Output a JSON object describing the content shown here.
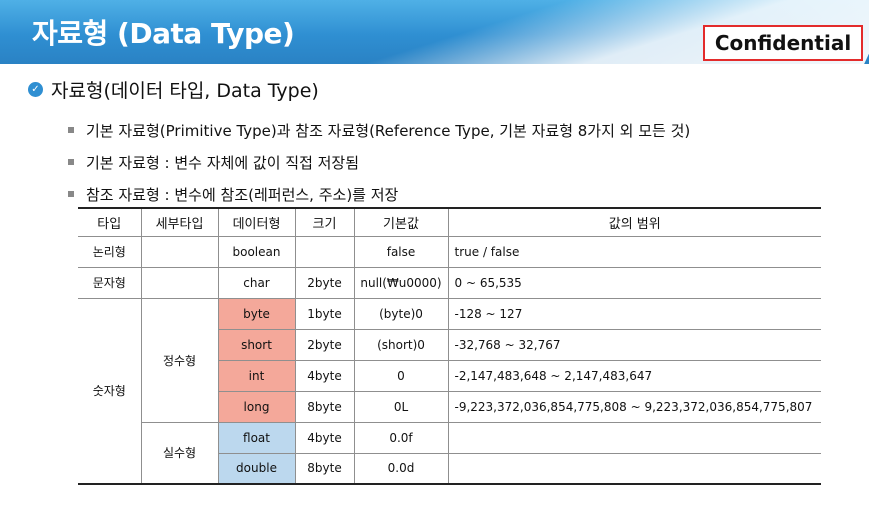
{
  "header": {
    "title": "자료형 (Data Type)",
    "badge": "Confidential"
  },
  "colors": {
    "header_blue": "#2f8fd2",
    "badge_border": "#e32b2b",
    "integer_cell": "#f4a89a",
    "real_cell": "#bcd8ee"
  },
  "section": {
    "icon": "check-circle-icon",
    "heading": "자료형(데이터 타입, Data Type)"
  },
  "bullets": [
    "기본 자료형(Primitive Type)과 참조 자료형(Reference Type, 기본 자료형 8가지 외 모든 것)",
    "기본 자료형 : 변수 자체에 값이 직접 저장됨",
    "참조 자료형 : 변수에 참조(레퍼런스, 주소)를 저장"
  ],
  "table": {
    "headers": [
      "타입",
      "세부타입",
      "데이터형",
      "크기",
      "기본값",
      "값의 범위"
    ],
    "groups": {
      "logical": "논리형",
      "character": "문자형",
      "numeric": "숫자형",
      "integer": "정수형",
      "real": "실수형"
    },
    "rows": [
      {
        "datatype": "boolean",
        "size": "",
        "default": "false",
        "range": "true / false"
      },
      {
        "datatype": "char",
        "size": "2byte",
        "default": "null(₩u0000)",
        "range": "0 ~ 65,535"
      },
      {
        "datatype": "byte",
        "size": "1byte",
        "default": "(byte)0",
        "range": "-128 ~ 127"
      },
      {
        "datatype": "short",
        "size": "2byte",
        "default": "(short)0",
        "range": "-32,768 ~ 32,767"
      },
      {
        "datatype": "int",
        "size": "4byte",
        "default": "0",
        "range": "-2,147,483,648 ~ 2,147,483,647"
      },
      {
        "datatype": "long",
        "size": "8byte",
        "default": "0L",
        "range": "-9,223,372,036,854,775,808 ~ 9,223,372,036,854,775,807"
      },
      {
        "datatype": "float",
        "size": "4byte",
        "default": "0.0f",
        "range": ""
      },
      {
        "datatype": "double",
        "size": "8byte",
        "default": "0.0d",
        "range": ""
      }
    ]
  }
}
